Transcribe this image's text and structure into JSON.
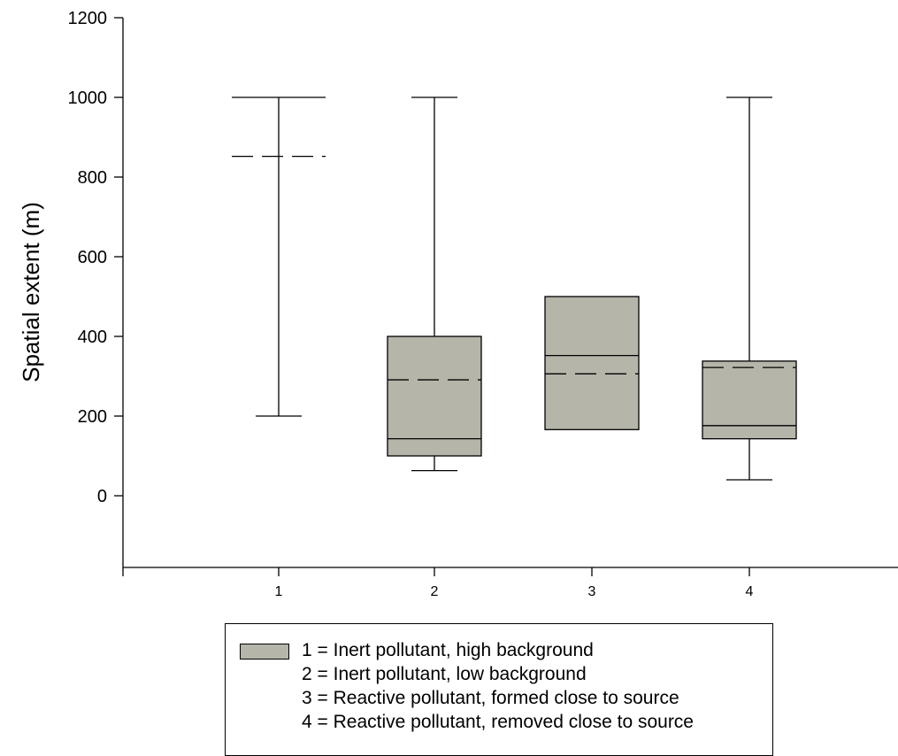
{
  "chart_data": {
    "type": "box",
    "ylabel": "Spatial extent (m)",
    "xlabel": "",
    "ylim": [
      -180,
      1200
    ],
    "yticks": [
      0,
      200,
      400,
      600,
      800,
      1000,
      1200
    ],
    "categories": [
      "1",
      "2",
      "3",
      "4"
    ],
    "box_color": "#b5b5aa",
    "boxes": [
      {
        "category": "1",
        "whisker_low": 200,
        "q1": null,
        "median": null,
        "mean": 852,
        "q3": null,
        "whisker_high": 1000
      },
      {
        "category": "2",
        "whisker_low": 63,
        "q1": 100,
        "median": 143,
        "mean": 291,
        "q3": 400,
        "whisker_high": 1000
      },
      {
        "category": "3",
        "whisker_low": null,
        "q1": 166,
        "median": 352,
        "mean": 306,
        "q3": 500,
        "whisker_high": null
      },
      {
        "category": "4",
        "whisker_low": 40,
        "q1": 143,
        "median": 176,
        "mean": 322,
        "q3": 338,
        "whisker_high": 1000
      }
    ],
    "legend": [
      "1 = Inert pollutant, high background",
      "2 = Inert pollutant, low background",
      "3 = Reactive pollutant, formed close to source",
      "4 = Reactive pollutant, removed close to source"
    ],
    "legend_position": "bottom",
    "grid": false
  }
}
